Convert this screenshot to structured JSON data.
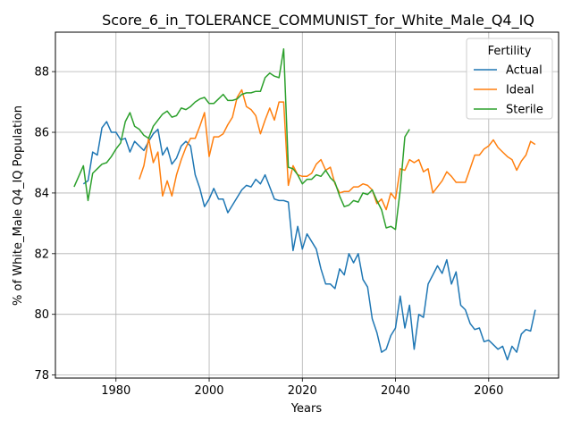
{
  "chart_data": {
    "type": "line",
    "title": "Score_6_in_TOLERANCE_COMMUNIST_for_White_Male_Q4_IQ",
    "xlabel": "Years",
    "ylabel": "% of White_Male Q4_IQ Population",
    "xlim": [
      1967,
      2075
    ],
    "ylim": [
      77.9,
      89.3
    ],
    "xticks": [
      1980,
      2000,
      2020,
      2040,
      2060
    ],
    "yticks": [
      78,
      80,
      82,
      84,
      86,
      88
    ],
    "grid": true,
    "legend": {
      "title": "Fertility",
      "position": "top-right"
    },
    "series": [
      {
        "name": "Actual",
        "color": "#1f77b4",
        "x": [
          1973,
          1974,
          1975,
          1976,
          1977,
          1978,
          1979,
          1980,
          1981,
          1982,
          1983,
          1984,
          1985,
          1986,
          1987,
          1988,
          1989,
          1990,
          1991,
          1992,
          1993,
          1994,
          1995,
          1996,
          1997,
          1998,
          1999,
          2000,
          2001,
          2002,
          2003,
          2004,
          2005,
          2006,
          2007,
          2008,
          2009,
          2010,
          2011,
          2012,
          2013,
          2014,
          2015,
          2016,
          2017,
          2018,
          2019,
          2020,
          2021,
          2022,
          2023,
          2024,
          2025,
          2026,
          2027,
          2028,
          2029,
          2030,
          2031,
          2032,
          2033,
          2034,
          2035,
          2036,
          2037,
          2038,
          2039,
          2040,
          2041,
          2042,
          2043,
          2044,
          2045,
          2046,
          2047,
          2048,
          2049,
          2050,
          2051,
          2052,
          2053,
          2054,
          2055,
          2056,
          2057,
          2058,
          2059,
          2060,
          2061,
          2062,
          2063,
          2064,
          2065,
          2066,
          2067,
          2068,
          2069,
          2070
        ],
        "values": [
          84.3,
          84.4,
          85.35,
          85.25,
          86.15,
          86.35,
          86.0,
          86.0,
          85.75,
          85.8,
          85.35,
          85.7,
          85.55,
          85.4,
          85.7,
          85.95,
          86.1,
          85.25,
          85.5,
          84.95,
          85.15,
          85.55,
          85.7,
          85.55,
          84.6,
          84.15,
          83.55,
          83.8,
          84.15,
          83.8,
          83.8,
          83.35,
          83.6,
          83.85,
          84.1,
          84.25,
          84.2,
          84.45,
          84.3,
          84.6,
          84.2,
          83.8,
          83.75,
          83.75,
          83.7,
          82.1,
          82.9,
          82.15,
          82.65,
          82.4,
          82.15,
          81.5,
          81.0,
          81.0,
          80.85,
          81.5,
          81.3,
          82.0,
          81.7,
          82.0,
          81.15,
          80.9,
          79.85,
          79.4,
          78.75,
          78.85,
          79.3,
          79.55,
          80.6,
          79.55,
          80.3,
          78.85,
          80.0,
          79.9,
          81.0,
          81.3,
          81.6,
          81.35,
          81.8,
          81.0,
          81.4,
          80.3,
          80.15,
          79.7,
          79.5,
          79.55,
          79.1,
          79.15,
          79.0,
          78.85,
          78.95,
          78.5,
          78.95,
          78.75,
          79.35,
          79.5,
          79.45,
          80.15
        ]
      },
      {
        "name": "Ideal",
        "color": "#ff7f0e",
        "x": [
          1985,
          1986,
          1987,
          1988,
          1989,
          1990,
          1991,
          1992,
          1993,
          1994,
          1995,
          1996,
          1997,
          1998,
          1999,
          2000,
          2001,
          2002,
          2003,
          2004,
          2005,
          2006,
          2007,
          2008,
          2009,
          2010,
          2011,
          2012,
          2013,
          2014,
          2015,
          2016,
          2017,
          2018,
          2019,
          2020,
          2021,
          2022,
          2023,
          2024,
          2025,
          2026,
          2027,
          2028,
          2029,
          2030,
          2031,
          2032,
          2033,
          2034,
          2035,
          2036,
          2037,
          2038,
          2039,
          2040,
          2041,
          2042,
          2043,
          2044,
          2045,
          2046,
          2047,
          2048,
          2049,
          2050,
          2051,
          2052,
          2053,
          2054,
          2055,
          2056,
          2057,
          2058,
          2059,
          2060,
          2061,
          2062,
          2063,
          2064,
          2065,
          2066,
          2067,
          2068,
          2069,
          2070
        ],
        "values": [
          84.45,
          84.9,
          85.8,
          85.0,
          85.35,
          83.9,
          84.4,
          83.9,
          84.6,
          85.1,
          85.5,
          85.8,
          85.8,
          86.2,
          86.65,
          85.2,
          85.85,
          85.85,
          85.95,
          86.25,
          86.5,
          87.15,
          87.4,
          86.85,
          86.75,
          86.55,
          85.95,
          86.4,
          86.8,
          86.4,
          87.0,
          87.0,
          84.25,
          84.9,
          84.6,
          84.55,
          84.55,
          84.65,
          84.95,
          85.1,
          84.75,
          84.85,
          84.3,
          84.0,
          84.05,
          84.05,
          84.2,
          84.2,
          84.3,
          84.25,
          84.1,
          83.65,
          83.8,
          83.45,
          84.0,
          83.8,
          84.8,
          84.75,
          85.1,
          85.0,
          85.1,
          84.7,
          84.8,
          84.0,
          84.2,
          84.4,
          84.7,
          84.55,
          84.35,
          84.35,
          84.35,
          84.8,
          85.25,
          85.25,
          85.45,
          85.55,
          85.75,
          85.5,
          85.35,
          85.2,
          85.1,
          84.75,
          85.05,
          85.25,
          85.7,
          85.6
        ]
      },
      {
        "name": "Sterile",
        "color": "#2ca02c",
        "x": [
          1971,
          1972,
          1973,
          1974,
          1975,
          1976,
          1977,
          1978,
          1979,
          1980,
          1981,
          1982,
          1983,
          1984,
          1985,
          1986,
          1987,
          1988,
          1989,
          1990,
          1991,
          1992,
          1993,
          1994,
          1995,
          1996,
          1997,
          1998,
          1999,
          2000,
          2001,
          2002,
          2003,
          2004,
          2005,
          2006,
          2007,
          2008,
          2009,
          2010,
          2011,
          2012,
          2013,
          2014,
          2015,
          2016,
          2017,
          2018,
          2019,
          2020,
          2021,
          2022,
          2023,
          2024,
          2025,
          2026,
          2027,
          2028,
          2029,
          2030,
          2031,
          2032,
          2033,
          2034,
          2035,
          2036,
          2037,
          2038,
          2039,
          2040,
          2041,
          2042,
          2043
        ],
        "values": [
          84.2,
          84.55,
          84.9,
          83.75,
          84.65,
          84.8,
          84.95,
          85.0,
          85.2,
          85.45,
          85.65,
          86.35,
          86.65,
          86.2,
          86.1,
          85.9,
          85.8,
          86.2,
          86.4,
          86.6,
          86.7,
          86.5,
          86.55,
          86.8,
          86.75,
          86.85,
          87.0,
          87.1,
          87.15,
          86.95,
          86.95,
          87.1,
          87.25,
          87.05,
          87.05,
          87.1,
          87.25,
          87.3,
          87.3,
          87.35,
          87.35,
          87.8,
          87.95,
          87.85,
          87.8,
          88.75,
          84.85,
          84.8,
          84.6,
          84.3,
          84.45,
          84.45,
          84.6,
          84.55,
          84.75,
          84.5,
          84.35,
          83.9,
          83.55,
          83.6,
          83.75,
          83.7,
          84.0,
          83.95,
          84.1,
          83.75,
          83.45,
          82.85,
          82.9,
          82.8,
          84.1,
          85.85,
          86.1
        ]
      }
    ]
  }
}
